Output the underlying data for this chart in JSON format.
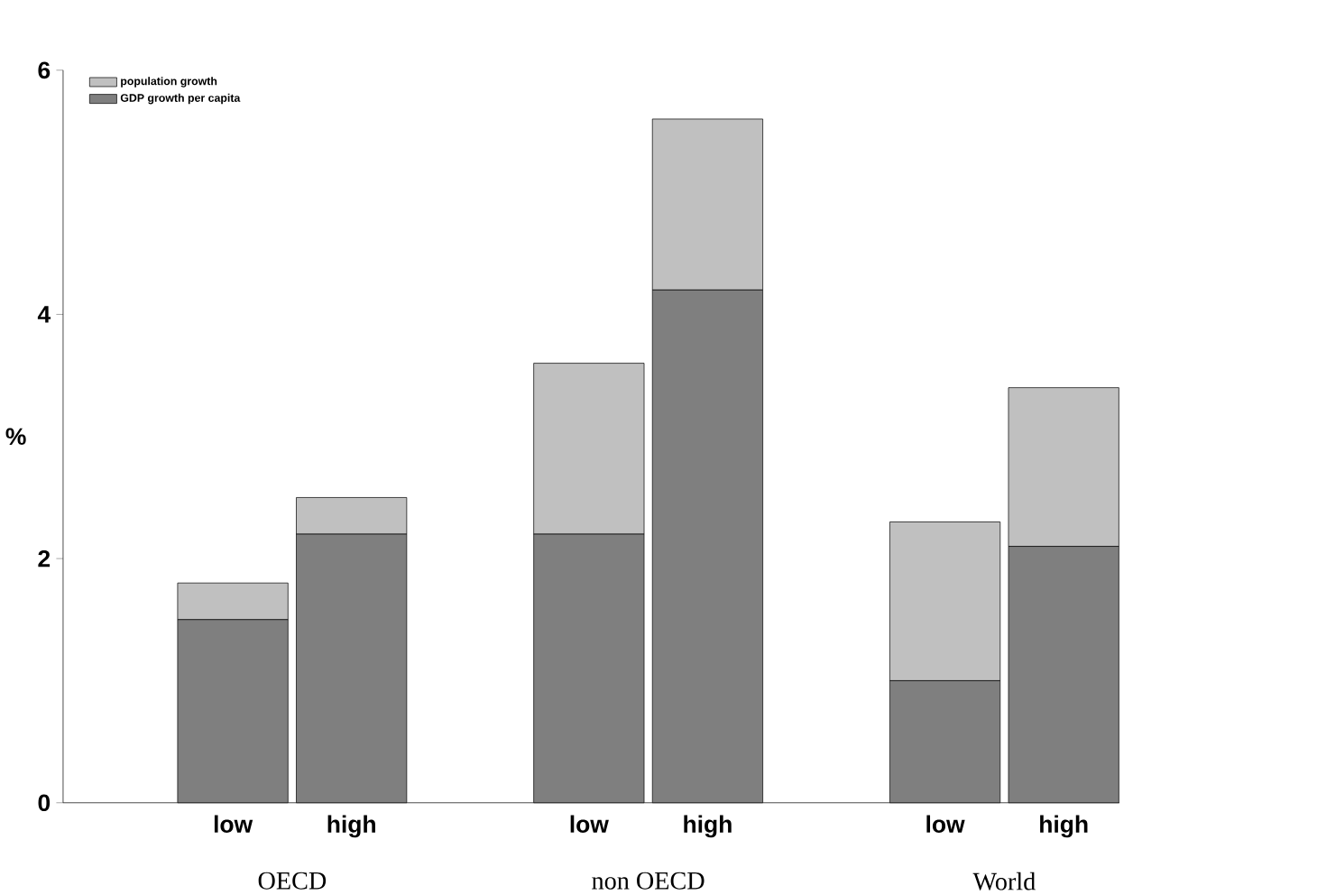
{
  "chart_data": {
    "type": "bar",
    "stacked": true,
    "ylabel": "%",
    "categories": [
      "low",
      "high",
      null,
      "low",
      "high",
      null,
      "low",
      "high"
    ],
    "series": [
      {
        "name": "GDP growth per capita",
        "color": "#7f7f7f",
        "values": [
          1.5,
          2.2,
          null,
          2.2,
          4.2,
          null,
          1.0,
          2.1
        ]
      },
      {
        "name": "population growth",
        "color": "#c0c0c0",
        "values": [
          0.3,
          0.3,
          null,
          1.4,
          1.4,
          null,
          1.3,
          1.3
        ]
      }
    ],
    "annotations": [
      "OECD",
      "non OECD",
      "World"
    ],
    "ylim": [
      0,
      6
    ],
    "yticks": [
      0,
      2,
      4,
      6
    ],
    "legend": "top left"
  }
}
